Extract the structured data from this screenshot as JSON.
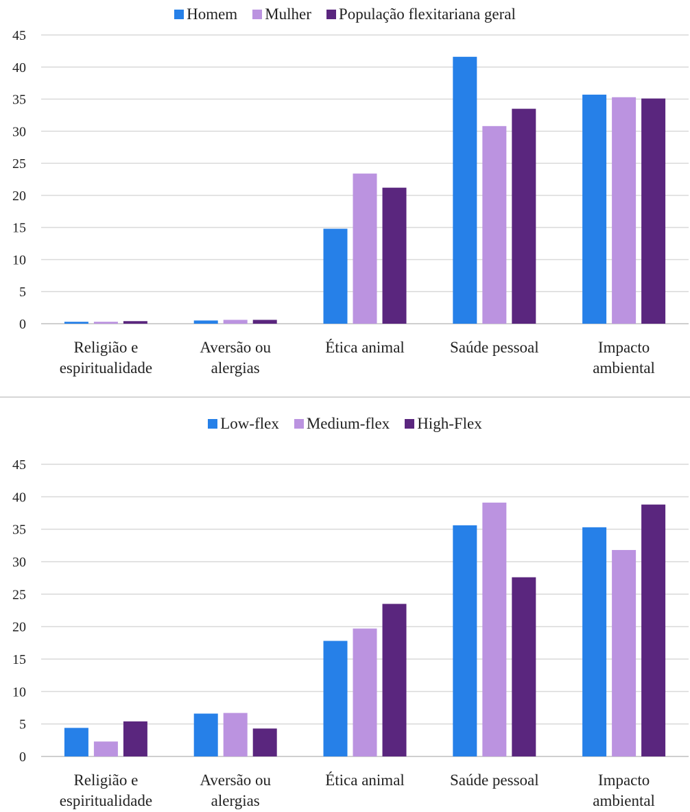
{
  "colors": {
    "series1": "#2680e8",
    "series2": "#bb93e0",
    "series3": "#5a267e",
    "grid": "#d9d9d9"
  },
  "chart_data": [
    {
      "type": "bar",
      "categories": [
        "Religião e\nespiritualidade",
        "Aversão ou\nalergias",
        "Ética animal",
        "Saúde pessoal",
        "Impacto\nambiental"
      ],
      "series": [
        {
          "name": "Homem",
          "values": [
            0.3,
            0.5,
            14.8,
            41.6,
            35.7
          ]
        },
        {
          "name": "Mulher",
          "values": [
            0.3,
            0.6,
            23.4,
            30.8,
            35.3
          ]
        },
        {
          "name": "População flexitariana geral",
          "values": [
            0.4,
            0.6,
            21.2,
            33.5,
            35.1
          ]
        }
      ],
      "ylim": [
        0,
        45
      ],
      "yticks": [
        0,
        5,
        10,
        15,
        20,
        25,
        30,
        35,
        40,
        45
      ],
      "grid": true,
      "legend": "top-center"
    },
    {
      "type": "bar",
      "categories": [
        "Religião e\nespiritualidade",
        "Aversão ou\nalergias",
        "Ética animal",
        "Saúde pessoal",
        "Impacto\nambiental"
      ],
      "series": [
        {
          "name": "Low-flex",
          "values": [
            4.4,
            6.6,
            17.8,
            35.6,
            35.3
          ]
        },
        {
          "name": "Medium-flex",
          "values": [
            2.3,
            6.7,
            19.7,
            39.1,
            31.8
          ]
        },
        {
          "name": "High-Flex",
          "values": [
            5.4,
            4.3,
            23.5,
            27.6,
            38.8
          ]
        }
      ],
      "ylim": [
        0,
        45
      ],
      "yticks": [
        0,
        5,
        10,
        15,
        20,
        25,
        30,
        35,
        40,
        45
      ],
      "grid": true,
      "legend": "top-center"
    }
  ]
}
